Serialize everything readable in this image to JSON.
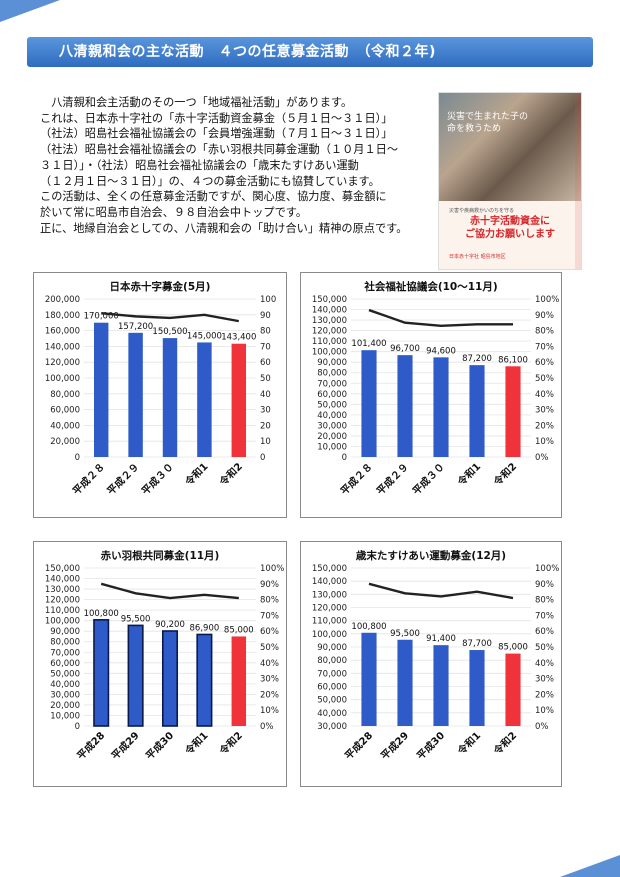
{
  "header": {
    "title": "八清親和会の主な活動　４つの任意募金活動　（令和２年)"
  },
  "intro": {
    "lines": [
      "　八清親和会主活動のその一つ「地域福祉活動」があります。",
      "これは、日本赤十字社の「赤十字活動資金募金（５月１日～３１日）」",
      "（社法）昭島社会福祉協議会の「会員増強運動（７月１日～３１日）」",
      "（社法）昭島社会福祉協議会の「赤い羽根共同募金運動（１０月１日～",
      "３１日）」・（社法）昭島社会福祉協議会の「歳末たすけあい運動",
      "（１２月１日～３１日）」の、４つの募金活動にも協賛しています。",
      "この活動は、全くの任意募金活動ですが、関心度、協力度、募金額に",
      "於いて常に昭島市自治会、９８自治会中トップです。",
      "正に、地縁自治会としての、八清親和会の「助け合い」精神の原点です。"
    ]
  },
  "poster": {
    "photo_caption": [
      "災害で生まれた子の",
      "命を救うため"
    ],
    "small_text": "災害や疾病救かいのちを守る",
    "appeal": [
      "赤十字活動資金に",
      "ご協力お願いします"
    ],
    "logo_text": "日本赤十字社 昭島市地区"
  },
  "colors": {
    "bar_blue": "#2e5bc7",
    "bar_red": "#f0333a",
    "line": "#222222",
    "header": "#3a78c9"
  },
  "chart_data": [
    {
      "type": "bar",
      "title": "日本赤十字募金(5月)",
      "categories": [
        "平成２８",
        "平成２９",
        "平成３０",
        "令和1",
        "令和2"
      ],
      "values": [
        170000,
        157200,
        150500,
        145000,
        143400
      ],
      "value_labels": [
        "170,000",
        "157,200",
        "150,500",
        "145,000",
        "143,400"
      ],
      "highlight_last": true,
      "bar_outlined": false,
      "ylim": [
        0,
        200000
      ],
      "yticks": [
        "0",
        "20,000",
        "40,000",
        "60,000",
        "80,000",
        "100,000",
        "120,000",
        "140,000",
        "160,000",
        "180,000",
        "200,000"
      ],
      "y2lim": [
        0,
        100
      ],
      "y2ticks": [
        "0",
        "10",
        "20",
        "30",
        "40",
        "50",
        "60",
        "70",
        "80",
        "90",
        "100"
      ],
      "line_values": [
        91,
        89,
        88,
        90,
        86
      ]
    },
    {
      "type": "bar",
      "title": "社会福祉協議会(10～11月)",
      "categories": [
        "平成２８",
        "平成２９",
        "平成３０",
        "令和1",
        "令和2"
      ],
      "values": [
        101400,
        96700,
        94600,
        87200,
        86100
      ],
      "value_labels": [
        "101,400",
        "96,700",
        "94,600",
        "87,200",
        "86,100"
      ],
      "highlight_last": true,
      "bar_outlined": false,
      "ylim": [
        0,
        150000
      ],
      "yticks": [
        "0",
        "10,000",
        "20,000",
        "30,000",
        "40,000",
        "50,000",
        "60,000",
        "70,000",
        "80,000",
        "90,000",
        "100,000",
        "110,000",
        "120,000",
        "130,000",
        "140,000",
        "150,000"
      ],
      "y2lim": [
        0,
        100
      ],
      "y2ticks": [
        "0%",
        "10%",
        "20%",
        "30%",
        "40%",
        "50%",
        "60%",
        "70%",
        "80%",
        "90%",
        "100%"
      ],
      "line_values": [
        93,
        85,
        83,
        84,
        84
      ]
    },
    {
      "type": "bar",
      "title": "赤い羽根共同募金(11月)",
      "categories": [
        "平成28",
        "平成29",
        "平成30",
        "令和1",
        "令和2"
      ],
      "values": [
        100800,
        95500,
        90200,
        86900,
        85000
      ],
      "value_labels": [
        "100,800",
        "95,500",
        "90,200",
        "86,900",
        "85,000"
      ],
      "highlight_last": true,
      "bar_outlined": true,
      "ylim": [
        0,
        150000
      ],
      "yticks": [
        "0",
        "10,000",
        "20,000",
        "30,000",
        "40,000",
        "50,000",
        "60,000",
        "70,000",
        "80,000",
        "90,000",
        "100,000",
        "110,000",
        "120,000",
        "130,000",
        "140,000",
        "150,000"
      ],
      "y2lim": [
        0,
        100
      ],
      "y2ticks": [
        "0%",
        "10%",
        "20%",
        "30%",
        "40%",
        "50%",
        "60%",
        "70%",
        "80%",
        "90%",
        "100%"
      ],
      "line_values": [
        90,
        84,
        81,
        83,
        81
      ]
    },
    {
      "type": "bar",
      "title": "歳末たすけあい運動募金(12月)",
      "categories": [
        "平成28",
        "平成29",
        "平成30",
        "令和1",
        "令和2"
      ],
      "values": [
        100800,
        95500,
        91400,
        87700,
        85000
      ],
      "value_labels": [
        "100,800",
        "95,500",
        "91,400",
        "87,700",
        "85,000"
      ],
      "highlight_last": true,
      "bar_outlined": false,
      "ylim": [
        30000,
        150000
      ],
      "yticks": [
        "30,000",
        "40,000",
        "50,000",
        "60,000",
        "70,000",
        "80,000",
        "90,000",
        "100,000",
        "110,000",
        "120,000",
        "130,000",
        "140,000",
        "150,000"
      ],
      "y2lim": [
        0,
        100
      ],
      "y2ticks": [
        "0%",
        "10%",
        "20%",
        "30%",
        "40%",
        "50%",
        "60%",
        "70%",
        "80%",
        "90%",
        "100%"
      ],
      "line_values": [
        90,
        84,
        82,
        85,
        81
      ]
    }
  ]
}
